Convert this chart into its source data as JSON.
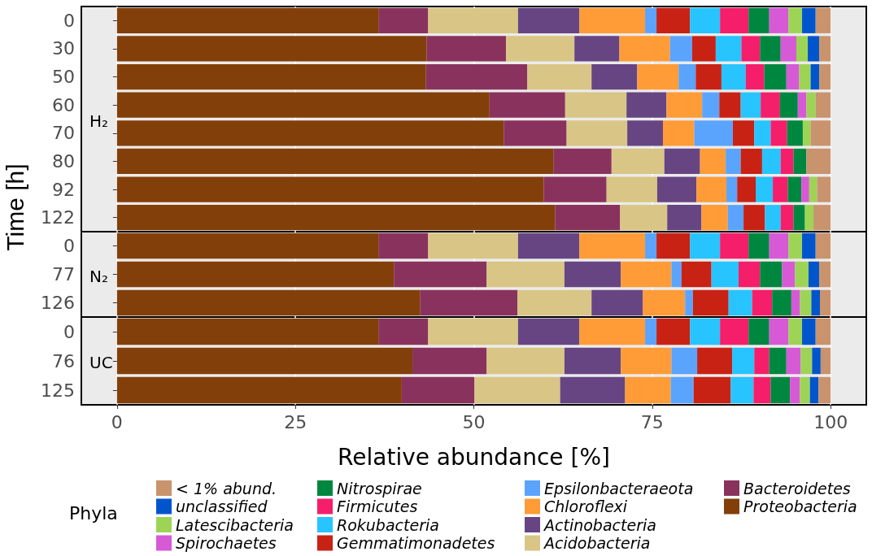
{
  "chart_data": [
    {
      "type": "bar",
      "orientation": "horizontal",
      "stacked": true,
      "title": "H₂",
      "ylabel": "Time [h]",
      "categories": [
        "0",
        "30",
        "50",
        "60",
        "70",
        "80",
        "92",
        "122"
      ],
      "xlim": [
        -5,
        105
      ],
      "xticks": [
        0,
        25,
        50,
        75,
        100
      ],
      "grid": "x",
      "tick_labels": "y",
      "series": [
        {
          "color": "#833f0a",
          "values": [
            36.7,
            43.4,
            43.3,
            52.2,
            54.2,
            61.2,
            59.8,
            61.4
          ]
        },
        {
          "color": "#8a325e",
          "values": [
            6.9,
            11.1,
            14.2,
            10.6,
            8.8,
            8.1,
            8.8,
            9.1
          ]
        },
        {
          "color": "#d9c585",
          "values": [
            12.6,
            9.6,
            9.0,
            8.6,
            8.5,
            7.4,
            7.1,
            6.6
          ]
        },
        {
          "color": "#674583",
          "values": [
            8.6,
            6.3,
            6.4,
            5.6,
            5.0,
            5.0,
            5.5,
            4.8
          ]
        },
        {
          "color": "#ff9c37",
          "values": [
            9.2,
            7.1,
            5.8,
            5.0,
            4.4,
            3.6,
            4.2,
            3.7
          ]
        },
        {
          "color": "#5ba4fe",
          "values": [
            1.6,
            3.1,
            2.4,
            2.4,
            5.4,
            2.1,
            1.5,
            2.2
          ]
        },
        {
          "color": "#c82214",
          "values": [
            4.7,
            3.3,
            3.6,
            3.0,
            3.0,
            3.0,
            2.6,
            3.0
          ]
        },
        {
          "color": "#27c4ff",
          "values": [
            4.2,
            3.6,
            3.4,
            2.8,
            2.3,
            2.6,
            2.4,
            2.2
          ]
        },
        {
          "color": "#f51e6a",
          "values": [
            4.0,
            2.6,
            2.6,
            2.7,
            2.3,
            1.8,
            2.1,
            1.8
          ]
        },
        {
          "color": "#00873f",
          "values": [
            2.9,
            2.9,
            3.1,
            2.5,
            2.2,
            1.8,
            1.9,
            1.6
          ]
        },
        {
          "color": "#d65ad6",
          "values": [
            2.7,
            2.2,
            1.8,
            1.2,
            0,
            0,
            1.1,
            0
          ]
        },
        {
          "color": "#9ed456",
          "values": [
            1.9,
            1.6,
            1.6,
            1.3,
            1.1,
            0,
            1.1,
            1.2
          ]
        },
        {
          "color": "#0055cc",
          "values": [
            1.9,
            1.6,
            1.2,
            0,
            0,
            0,
            0,
            0
          ]
        },
        {
          "color": "#c9936e",
          "values": [
            2.1,
            1.6,
            1.6,
            2.1,
            2.8,
            3.4,
            1.9,
            2.4
          ]
        }
      ]
    },
    {
      "type": "bar",
      "orientation": "horizontal",
      "stacked": true,
      "title": "N₂",
      "categories": [
        "0",
        "77",
        "126"
      ],
      "xlim": [
        -5,
        105
      ],
      "xticks": [
        0,
        25,
        50,
        75,
        100
      ],
      "grid": "x",
      "tick_labels": "y",
      "series": [
        {
          "color": "#833f0a",
          "values": [
            36.7,
            38.8,
            42.5
          ]
        },
        {
          "color": "#8a325e",
          "values": [
            6.9,
            13.0,
            13.6
          ]
        },
        {
          "color": "#d9c585",
          "values": [
            12.6,
            10.9,
            10.4
          ]
        },
        {
          "color": "#674583",
          "values": [
            8.6,
            7.9,
            7.2
          ]
        },
        {
          "color": "#ff9c37",
          "values": [
            9.2,
            7.1,
            5.9
          ]
        },
        {
          "color": "#5ba4fe",
          "values": [
            1.6,
            1.4,
            1.1
          ]
        },
        {
          "color": "#c82214",
          "values": [
            4.7,
            4.2,
            5.0
          ]
        },
        {
          "color": "#27c4ff",
          "values": [
            4.2,
            3.8,
            3.3
          ]
        },
        {
          "color": "#f51e6a",
          "values": [
            4.0,
            3.0,
            2.8
          ]
        },
        {
          "color": "#00873f",
          "values": [
            2.9,
            3.1,
            2.7
          ]
        },
        {
          "color": "#d65ad6",
          "values": [
            2.7,
            1.8,
            1.2
          ]
        },
        {
          "color": "#9ed456",
          "values": [
            1.9,
            1.9,
            1.6
          ]
        },
        {
          "color": "#0055cc",
          "values": [
            1.9,
            1.5,
            1.2
          ]
        },
        {
          "color": "#c9936e",
          "values": [
            2.1,
            1.6,
            1.5
          ]
        }
      ]
    },
    {
      "type": "bar",
      "orientation": "horizontal",
      "stacked": true,
      "title": "UC",
      "xlabel": "Relative abundance [%]",
      "legend": "bottom",
      "legend_title": "Phyla",
      "categories": [
        "0",
        "76",
        "125"
      ],
      "xlim": [
        -5,
        105
      ],
      "xticks": [
        0,
        25,
        50,
        75,
        100
      ],
      "grid": "x",
      "series": [
        {
          "name": "Proteobacteria",
          "color": "#833f0a",
          "values": [
            36.7,
            41.4,
            39.9
          ]
        },
        {
          "name": "Bacteroidetes",
          "color": "#8a325e",
          "values": [
            6.9,
            10.4,
            10.2
          ]
        },
        {
          "name": "Acidobacteria",
          "color": "#d9c585",
          "values": [
            12.6,
            10.9,
            12.0
          ]
        },
        {
          "name": "Actinobacteria",
          "color": "#674583",
          "values": [
            8.6,
            7.9,
            9.1
          ]
        },
        {
          "name": "Chloroflexi",
          "color": "#ff9c37",
          "values": [
            9.2,
            7.1,
            6.4
          ]
        },
        {
          "name": "Epsilonbacteraeota",
          "color": "#5ba4fe",
          "values": [
            1.6,
            3.6,
            3.2
          ]
        },
        {
          "name": "Gemmatimonadetes",
          "color": "#c82214",
          "values": [
            4.7,
            4.9,
            5.2
          ]
        },
        {
          "name": "Rokubacteria",
          "color": "#27c4ff",
          "values": [
            4.2,
            3.1,
            3.2
          ]
        },
        {
          "name": "Firmicutes",
          "color": "#f51e6a",
          "values": [
            4.0,
            2.1,
            2.4
          ]
        },
        {
          "name": "Nitrospirae",
          "color": "#00873f",
          "values": [
            2.9,
            2.4,
            2.7
          ]
        },
        {
          "name": "Spirochaetes",
          "color": "#d65ad6",
          "values": [
            2.7,
            2.0,
            1.4
          ]
        },
        {
          "name": "Latescibacteria",
          "color": "#9ed456",
          "values": [
            1.9,
            1.6,
            1.4
          ]
        },
        {
          "name": "unclassified",
          "color": "#0055cc",
          "values": [
            1.9,
            1.2,
            1.2
          ]
        },
        {
          "name": "< 1% abund.",
          "color": "#c9936e",
          "values": [
            2.1,
            1.4,
            1.7
          ]
        }
      ]
    }
  ]
}
